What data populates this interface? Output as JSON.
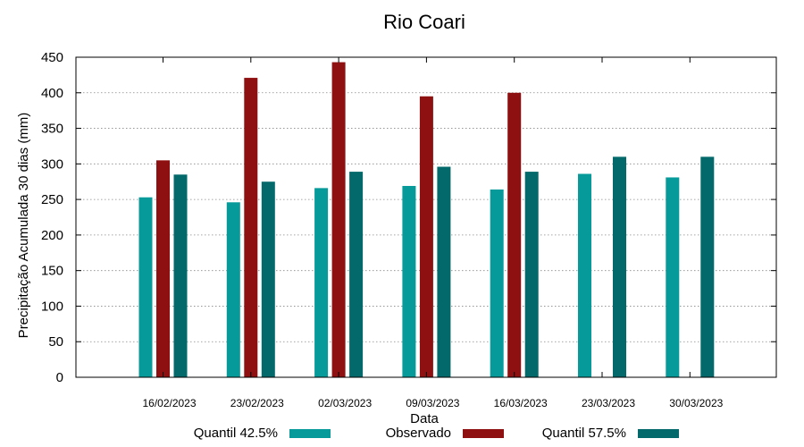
{
  "chart_data": {
    "type": "bar",
    "title": "Rio Coari",
    "xlabel": "Data",
    "ylabel": "Precipitação Acumulada 30 dias (mm)",
    "ylim": [
      0,
      450
    ],
    "yticks": [
      0,
      50,
      100,
      150,
      200,
      250,
      300,
      350,
      400,
      450
    ],
    "grid": true,
    "legend_position": "bottom",
    "categories": [
      "16/02/2023",
      "23/02/2023",
      "02/03/2023",
      "09/03/2023",
      "16/03/2023",
      "23/03/2023",
      "30/03/2023"
    ],
    "series": [
      {
        "name": "Quantil 42.5%",
        "color": "#069a9a",
        "values": [
          253,
          246,
          266,
          269,
          264,
          286,
          281
        ]
      },
      {
        "name": "Observado",
        "color": "#8e1010",
        "values": [
          305,
          421,
          443,
          395,
          400,
          null,
          null
        ]
      },
      {
        "name": "Quantil 57.5%",
        "color": "#03696a",
        "values": [
          285,
          275,
          289,
          296,
          289,
          310,
          310
        ]
      }
    ]
  }
}
